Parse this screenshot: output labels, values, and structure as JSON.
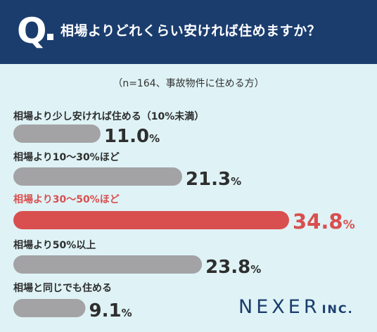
{
  "header": {
    "q_mark": "Q",
    "question": "相場よりどれくらい安ければ住めますか？"
  },
  "sample_note": "（n=164、事故物件に住める方）",
  "chart_data": {
    "type": "bar",
    "orientation": "horizontal",
    "unit": "%",
    "categories": [
      "相場より少し安ければ住める（10%未満）",
      "相場より10〜30%ほど",
      "相場より30〜50%ほど",
      "相場より50%以上",
      "相場と同じでも住める"
    ],
    "values": [
      11.0,
      21.3,
      34.8,
      23.8,
      9.1
    ],
    "value_labels": [
      "11.0",
      "21.3",
      "34.8",
      "23.8",
      "9.1"
    ],
    "highlight_index": 2,
    "colors": {
      "bar": "#a3a3a6",
      "highlight": "#d94f4f",
      "text": "#2e2e2e"
    },
    "xlim": [
      0,
      34.8
    ]
  },
  "logo": {
    "main": "NEXER",
    "sub": "INC."
  },
  "colors": {
    "header_bg": "#1b3d6e",
    "page_bg": "#dff3f6"
  }
}
